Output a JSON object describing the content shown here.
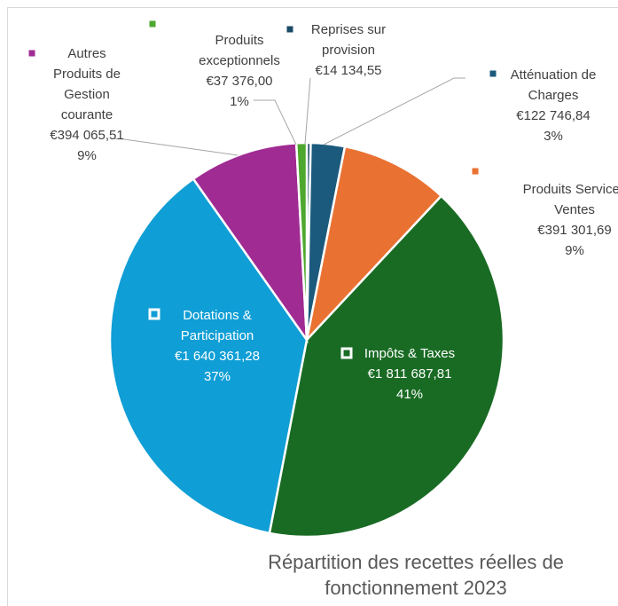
{
  "chart_data": {
    "type": "pie",
    "title": "Répartition des recettes réelles de fonctionnement 2023",
    "categories": [
      "Reprises sur provision",
      "Atténuation de Charges",
      "Produits Services Ventes",
      "Impôts & Taxes",
      "Dotations & Participation",
      "Autres Produits de Gestion courante",
      "Produits exceptionnels"
    ],
    "values": [
      14134.55,
      122746.84,
      391301.69,
      1811687.81,
      1640361.28,
      394065.51,
      37376.0
    ],
    "value_labels": [
      "€14 134,55",
      "€122 746,84",
      "€391 301,69",
      "€1 811 687,81",
      "€1 640 361,28",
      "€394 065,51",
      "€37 376,00"
    ],
    "percent_labels": [
      null,
      "3%",
      "9%",
      "41%",
      "37%",
      "9%",
      "1%"
    ],
    "colors": [
      "#1b4a66",
      "#1b5a7c",
      "#e97132",
      "#196b24",
      "#0f9ed5",
      "#a02b93",
      "#4ea72e"
    ]
  }
}
